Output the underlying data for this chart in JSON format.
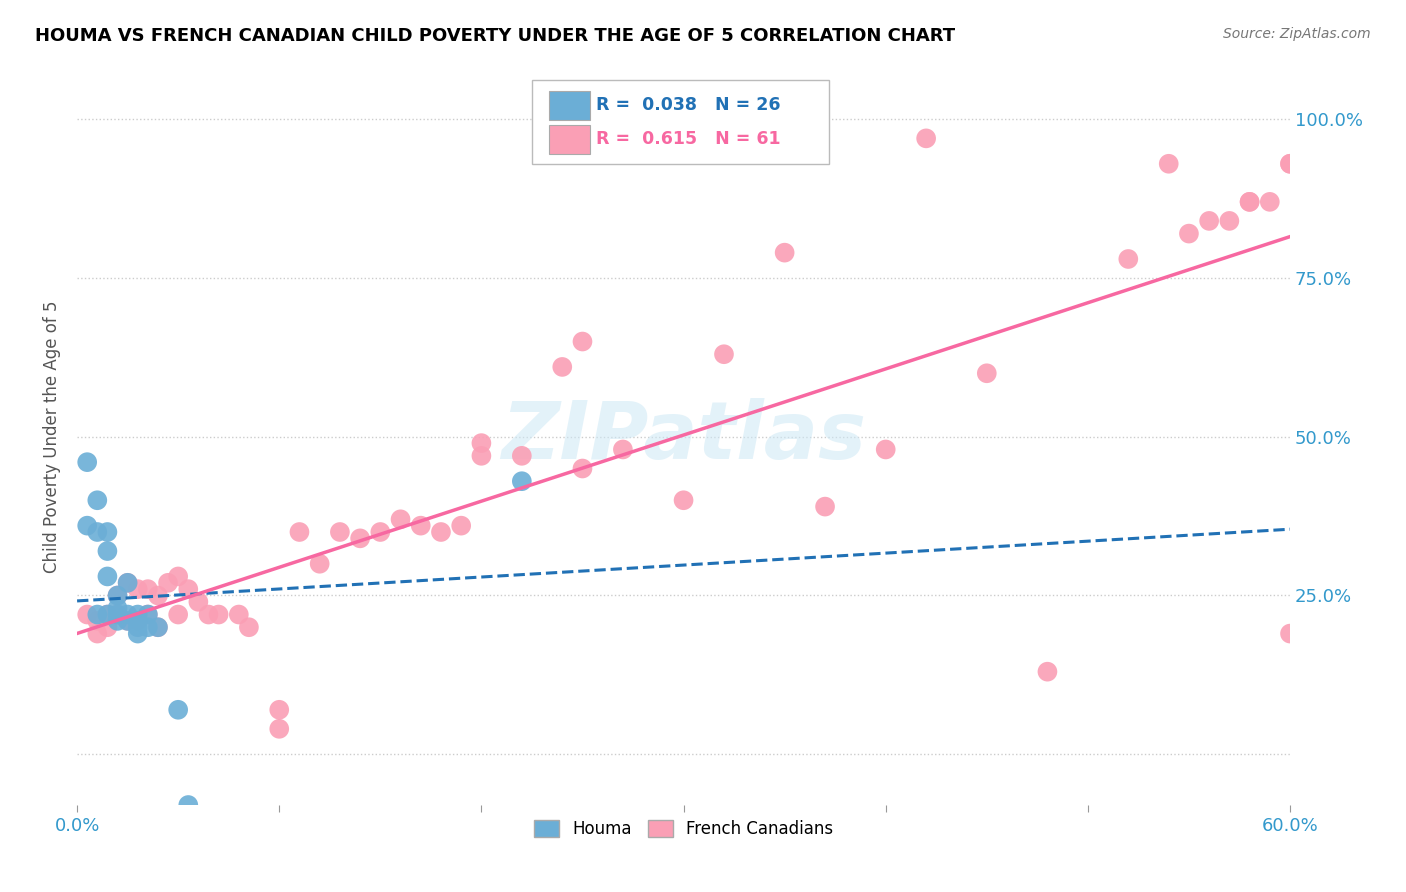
{
  "title": "HOUMA VS FRENCH CANADIAN CHILD POVERTY UNDER THE AGE OF 5 CORRELATION CHART",
  "source": "Source: ZipAtlas.com",
  "ylabel": "Child Poverty Under the Age of 5",
  "xlim": [
    0.0,
    0.6
  ],
  "ylim": [
    -0.08,
    1.08
  ],
  "xticks": [
    0.0,
    0.1,
    0.2,
    0.3,
    0.4,
    0.5,
    0.6
  ],
  "xticklabels": [
    "0.0%",
    "",
    "",
    "",
    "",
    "",
    "60.0%"
  ],
  "yticks": [
    0.0,
    0.25,
    0.5,
    0.75,
    1.0
  ],
  "yticklabels": [
    "",
    "25.0%",
    "50.0%",
    "75.0%",
    "100.0%"
  ],
  "houma_R": "0.038",
  "houma_N": "26",
  "french_R": "0.615",
  "french_N": "61",
  "houma_color": "#6baed6",
  "french_color": "#fa9fb5",
  "houma_line_color": "#2171b5",
  "french_line_color": "#f768a1",
  "watermark": "ZIPatlas",
  "houma_x": [
    0.005,
    0.005,
    0.01,
    0.01,
    0.01,
    0.015,
    0.015,
    0.015,
    0.015,
    0.02,
    0.02,
    0.02,
    0.02,
    0.025,
    0.025,
    0.025,
    0.03,
    0.03,
    0.03,
    0.03,
    0.035,
    0.035,
    0.04,
    0.05,
    0.055,
    0.22
  ],
  "houma_y": [
    0.46,
    0.36,
    0.4,
    0.35,
    0.22,
    0.35,
    0.32,
    0.28,
    0.22,
    0.25,
    0.23,
    0.22,
    0.21,
    0.27,
    0.22,
    0.21,
    0.22,
    0.21,
    0.2,
    0.19,
    0.22,
    0.2,
    0.2,
    0.07,
    -0.08,
    0.43
  ],
  "french_x": [
    0.005,
    0.01,
    0.01,
    0.015,
    0.015,
    0.02,
    0.02,
    0.025,
    0.025,
    0.03,
    0.03,
    0.035,
    0.035,
    0.04,
    0.04,
    0.045,
    0.05,
    0.05,
    0.055,
    0.06,
    0.065,
    0.07,
    0.08,
    0.085,
    0.1,
    0.1,
    0.11,
    0.12,
    0.13,
    0.14,
    0.15,
    0.16,
    0.17,
    0.18,
    0.19,
    0.2,
    0.2,
    0.22,
    0.24,
    0.25,
    0.25,
    0.27,
    0.3,
    0.32,
    0.35,
    0.37,
    0.4,
    0.42,
    0.45,
    0.48,
    0.52,
    0.54,
    0.55,
    0.56,
    0.57,
    0.58,
    0.58,
    0.59,
    0.6,
    0.6,
    0.6
  ],
  "french_y": [
    0.22,
    0.21,
    0.19,
    0.22,
    0.2,
    0.25,
    0.22,
    0.27,
    0.21,
    0.26,
    0.21,
    0.26,
    0.22,
    0.25,
    0.2,
    0.27,
    0.28,
    0.22,
    0.26,
    0.24,
    0.22,
    0.22,
    0.22,
    0.2,
    0.04,
    0.07,
    0.35,
    0.3,
    0.35,
    0.34,
    0.35,
    0.37,
    0.36,
    0.35,
    0.36,
    0.47,
    0.49,
    0.47,
    0.61,
    0.45,
    0.65,
    0.48,
    0.4,
    0.63,
    0.79,
    0.39,
    0.48,
    0.97,
    0.6,
    0.13,
    0.78,
    0.93,
    0.82,
    0.84,
    0.84,
    0.87,
    0.87,
    0.87,
    0.93,
    0.93,
    0.19
  ]
}
